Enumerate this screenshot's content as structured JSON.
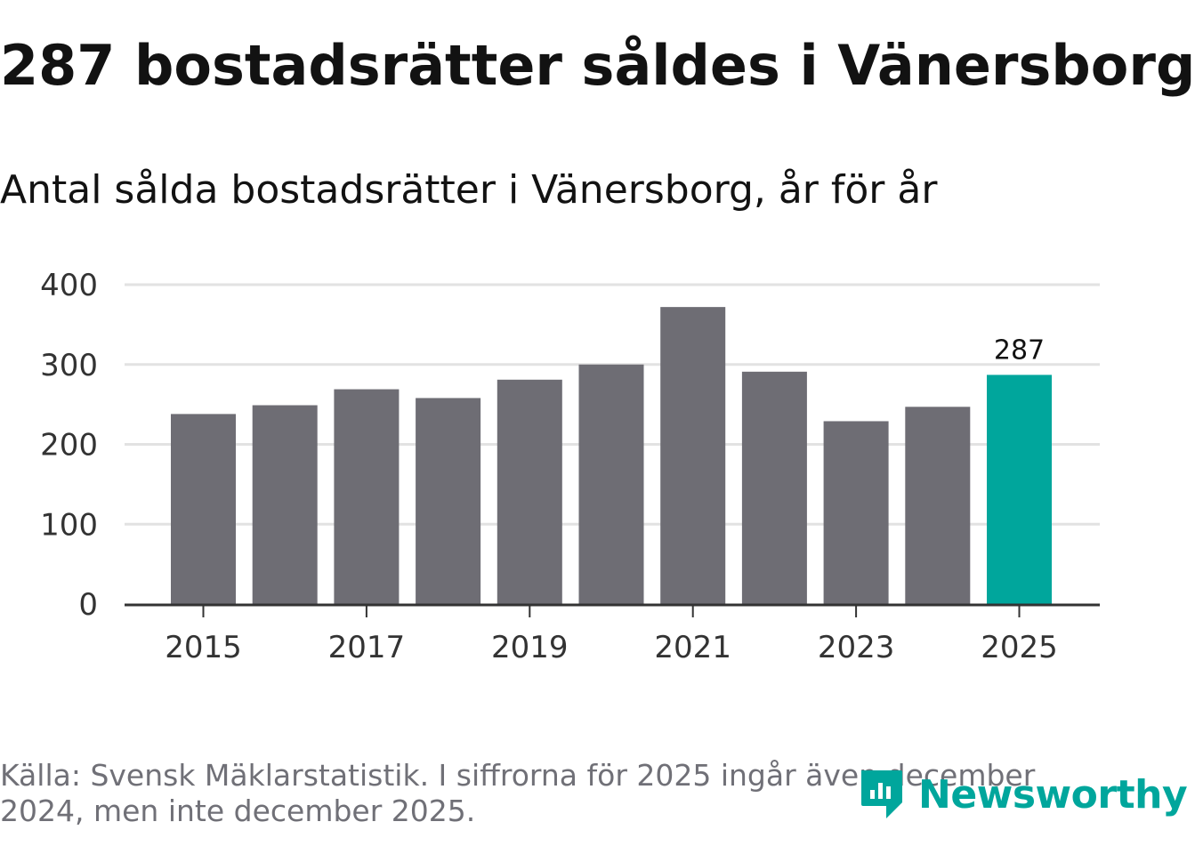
{
  "title": "287 bostadsrätter såldes i Vänersborg",
  "subtitle": "Antal sålda bostadsrätter i Vänersborg, år för år",
  "source_note": "Källa: Svensk Mäklarstatistik. I siffrorna för 2025 ingår även december 2024, men inte december 2025.",
  "logo": {
    "text": "Newsworthy",
    "icon": "newsworthy-logo-icon"
  },
  "colors": {
    "bar": "#6e6d74",
    "highlight": "#00a69c",
    "grid": "#e2e2e2",
    "axis": "#333333",
    "text": "#121212",
    "muted": "#707077"
  },
  "chart_data": {
    "type": "bar",
    "title": "287 bostadsrätter såldes i Vänersborg",
    "subtitle": "Antal sålda bostadsrätter i Vänersborg, år för år",
    "xlabel": "",
    "ylabel": "",
    "categories": [
      "2015",
      "2016",
      "2017",
      "2018",
      "2019",
      "2020",
      "2021",
      "2022",
      "2023",
      "2024",
      "2025"
    ],
    "values": [
      238,
      249,
      269,
      258,
      281,
      300,
      372,
      291,
      229,
      247,
      287
    ],
    "highlight_index": 10,
    "highlight_label": "287",
    "ylim": [
      0,
      400
    ],
    "yticks": [
      "0",
      "100",
      "200",
      "300",
      "400"
    ],
    "xticks": [
      "2015",
      "2017",
      "2019",
      "2021",
      "2023",
      "2025"
    ],
    "grid": true
  }
}
